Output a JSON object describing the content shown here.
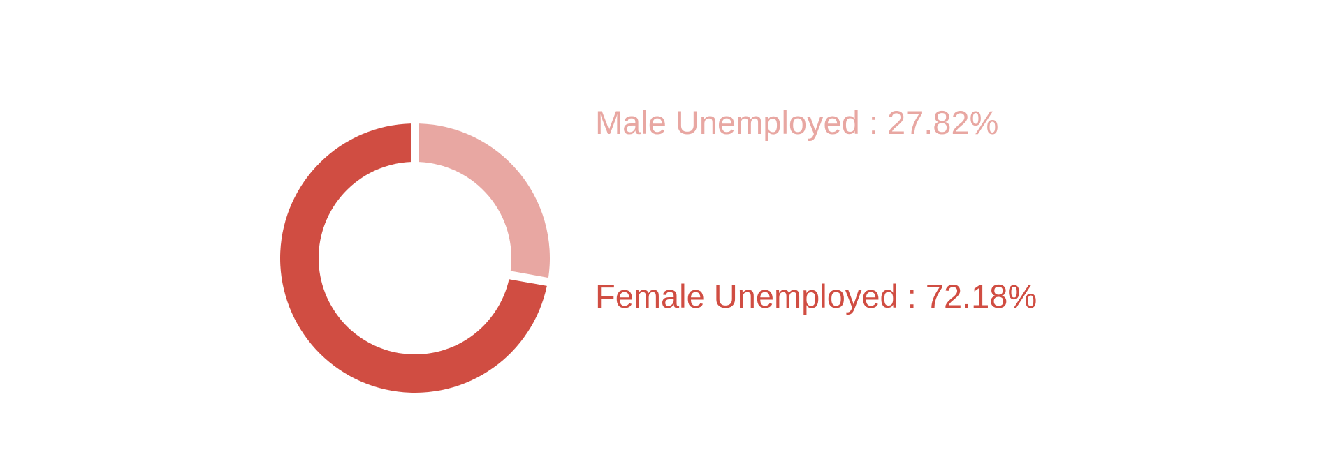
{
  "chart_data": {
    "type": "pie",
    "variant": "donut",
    "labels": [
      "Male Unemployed",
      "Female Unemployed"
    ],
    "values": [
      27.82,
      72.18
    ],
    "unit": "%",
    "colors": [
      "#e8a7a2",
      "#d04d42"
    ],
    "legend_position": "right",
    "legend_entries": [
      {
        "text": "Male Unemployed : 27.82%",
        "color": "#e8a7a2"
      },
      {
        "text": "Female Unemployed : 72.18%",
        "color": "#d04d42"
      }
    ]
  }
}
